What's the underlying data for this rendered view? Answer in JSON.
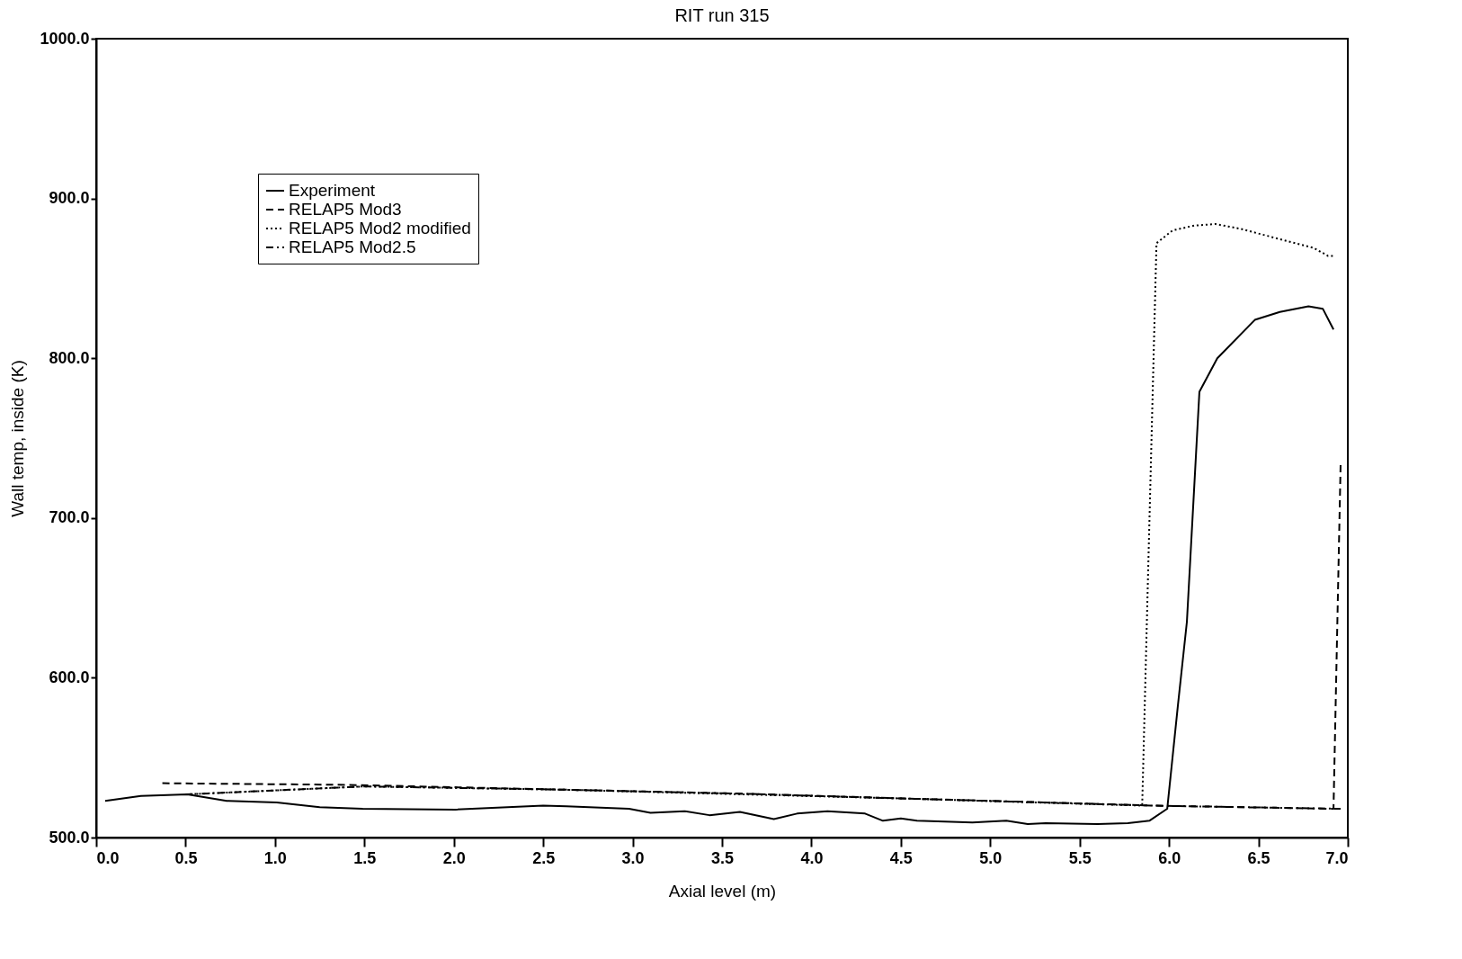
{
  "chart_data": {
    "type": "line",
    "title": "RIT  run 315",
    "xlabel": "Axial level (m)",
    "ylabel": "Wall temp, inside (K)",
    "xlim": [
      0,
      7
    ],
    "ylim": [
      500,
      1000
    ],
    "xticks": [
      {
        "value": 0,
        "label": "0.0"
      },
      0.5,
      {
        "value": 1,
        "label": "1.0"
      },
      1.5,
      {
        "value": 2,
        "label": "2.0"
      },
      2.5,
      {
        "value": 3,
        "label": "3.0"
      },
      3.5,
      {
        "value": 4,
        "label": "4.0"
      },
      4.5,
      {
        "value": 5,
        "label": "5.0"
      },
      5.5,
      {
        "value": 6,
        "label": "6.0"
      },
      6.5,
      {
        "value": 7,
        "label": "7.0"
      }
    ],
    "yticks": [
      {
        "value": 500,
        "label": "500.0"
      },
      {
        "value": 600,
        "label": "600.0"
      },
      {
        "value": 700,
        "label": "700.0"
      },
      {
        "value": 800,
        "label": "800.0"
      },
      {
        "value": 900,
        "label": "900.0"
      },
      {
        "value": 1000,
        "label": "1000.0"
      }
    ],
    "grid": false,
    "legend": "top left",
    "series": [
      {
        "name": "Experiment",
        "color": "#000000",
        "line_style": "solid",
        "x": [
          0.05,
          0.25,
          0.51,
          0.73,
          1.01,
          1.25,
          1.49,
          2.01,
          2.5,
          2.63,
          2.98,
          3.1,
          3.29,
          3.43,
          3.6,
          3.79,
          3.92,
          4.09,
          4.3,
          4.4,
          4.5,
          4.59,
          4.9,
          5.09,
          5.21,
          5.31,
          5.6,
          5.77,
          5.89,
          5.99,
          6.05,
          6.1,
          6.17,
          6.27,
          6.48,
          6.62,
          6.78,
          6.86,
          6.92
        ],
        "values": [
          523,
          526,
          527,
          523,
          522,
          519,
          518,
          517.5,
          520,
          519.5,
          518,
          515.5,
          516.5,
          514,
          516,
          511.5,
          515,
          516.5,
          515,
          510.5,
          512,
          510.5,
          509.5,
          510.5,
          508.5,
          509,
          508.5,
          509,
          510.5,
          518,
          583,
          635,
          779,
          800,
          824,
          829,
          832.5,
          831,
          818
        ]
      },
      {
        "name": "RELAP5 Mod3",
        "color": "#000000",
        "line_style": "dashed",
        "x": [
          0.37,
          1.4,
          2.6,
          3.6,
          4.5,
          5.3,
          5.9,
          6.92,
          6.96
        ],
        "values": [
          534,
          533,
          530,
          527.5,
          524.5,
          522,
          520,
          518,
          735
        ]
      },
      {
        "name": "RELAP5 Mod2 modified",
        "color": "#000000",
        "line_style": "dotted",
        "x": [
          0.5,
          1.5,
          2.6,
          4.5,
          5.85,
          5.93,
          6.02,
          6.14,
          6.26,
          6.4,
          6.57,
          6.81,
          6.89,
          6.93
        ],
        "values": [
          527,
          532,
          530,
          524.5,
          520,
          872,
          880,
          883,
          884,
          881,
          876,
          869,
          864,
          864
        ]
      },
      {
        "name": "RELAP5 Mod2.5",
        "color": "#000000",
        "line_style": "dashdot",
        "x": [
          0.5,
          1.0,
          1.5,
          2.6,
          3.6,
          4.5,
          5.3,
          5.9,
          6.96
        ],
        "values": [
          527,
          529.5,
          532,
          530,
          527.5,
          524.5,
          522,
          520,
          518
        ]
      }
    ]
  }
}
